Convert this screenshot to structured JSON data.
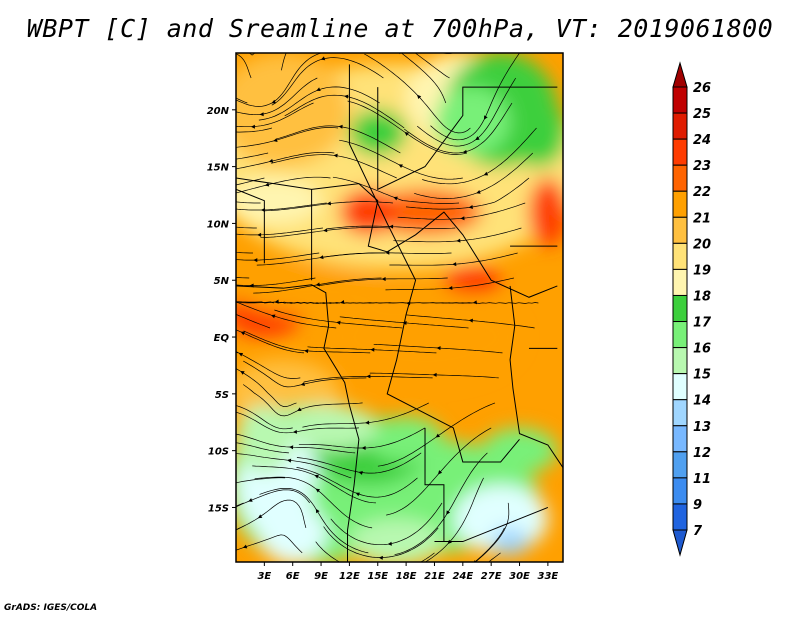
{
  "title": "WBPT [C] and Sreamline at 700hPa, VT: 2019061800",
  "credit": "GrADS: IGES/COLA",
  "map": {
    "variable": "Wet-bulb potential temperature",
    "units": "C",
    "level": "700hPa",
    "valid_time": "2019061800",
    "lon_range": [
      0,
      34.6
    ],
    "lat_range": [
      -19.8,
      25
    ],
    "lat_ticks": [
      {
        "value": 20,
        "label": "20N"
      },
      {
        "value": 15,
        "label": "15N"
      },
      {
        "value": 10,
        "label": "10N"
      },
      {
        "value": 5,
        "label": "5N"
      },
      {
        "value": 0,
        "label": "EQ"
      },
      {
        "value": -5,
        "label": "5S"
      },
      {
        "value": -10,
        "label": "10S"
      },
      {
        "value": -15,
        "label": "15S"
      }
    ],
    "lon_ticks": [
      {
        "value": 3,
        "label": "3E"
      },
      {
        "value": 6,
        "label": "6E"
      },
      {
        "value": 9,
        "label": "9E"
      },
      {
        "value": 12,
        "label": "12E"
      },
      {
        "value": 15,
        "label": "15E"
      },
      {
        "value": 18,
        "label": "18E"
      },
      {
        "value": 21,
        "label": "21E"
      },
      {
        "value": 24,
        "label": "24E"
      },
      {
        "value": 27,
        "label": "27E"
      },
      {
        "value": 30,
        "label": "30E"
      },
      {
        "value": 33,
        "label": "33E"
      }
    ]
  },
  "colorbar": {
    "labels": [
      "26",
      "25",
      "24",
      "23",
      "22",
      "21",
      "20",
      "19",
      "18",
      "17",
      "16",
      "15",
      "14",
      "13",
      "12",
      "11",
      "9",
      "7"
    ],
    "colors": [
      "#a00000",
      "#c00000",
      "#e01c00",
      "#ff3c00",
      "#ff6400",
      "#ffa000",
      "#ffc040",
      "#ffe278",
      "#fff5b0",
      "#3ccf3c",
      "#78f078",
      "#b8f8b0",
      "#e0ffff",
      "#a0d6ff",
      "#78b8ff",
      "#50a0f0",
      "#3c8cf0",
      "#2064e0",
      "#1e5ad0"
    ]
  }
}
